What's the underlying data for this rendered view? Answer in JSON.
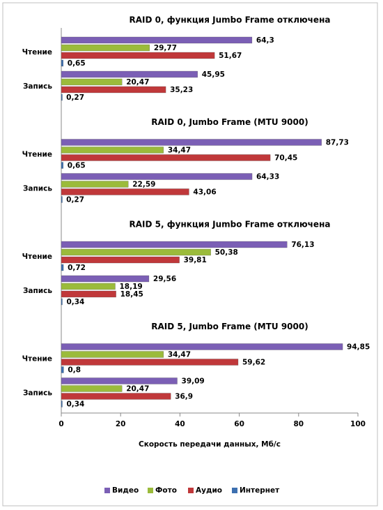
{
  "chart_data": {
    "type": "bar",
    "orientation": "horizontal",
    "group_titles": [
      "RAID 0, функция Jumbo Frame отключена",
      "RAID 0, Jumbo Frame (MTU 9000)",
      "RAID 5, функция Jumbo Frame отключена",
      "RAID 5, Jumbo Frame (MTU 9000)"
    ],
    "categories": [
      "Чтение",
      "Запись",
      "Чтение",
      "Запись",
      "Чтение",
      "Запись",
      "Чтение",
      "Запись"
    ],
    "xlabel": "Скорость передачи данных, Мб/с",
    "xlim": [
      0,
      100
    ],
    "xticks": [
      0,
      20,
      40,
      60,
      80,
      100
    ],
    "series": [
      {
        "name": "Видео",
        "color": "#7b5fb5",
        "values": [
          64.3,
          45.95,
          87.73,
          64.33,
          76.13,
          29.56,
          94.85,
          39.09
        ],
        "value_labels": [
          "64,3",
          "45,95",
          "87,73",
          "64,33",
          "76,13",
          "29,56",
          "94,85",
          "39,09"
        ]
      },
      {
        "name": "Фото",
        "color": "#9bbb3b",
        "values": [
          29.77,
          20.47,
          34.47,
          22.59,
          50.38,
          18.19,
          34.47,
          20.47
        ],
        "value_labels": [
          "29,77",
          "20,47",
          "34,47",
          "22,59",
          "50,38",
          "18,19",
          "34,47",
          "20,47"
        ]
      },
      {
        "name": "Аудио",
        "color": "#c0383a",
        "values": [
          51.67,
          35.23,
          70.45,
          43.06,
          39.81,
          18.45,
          59.62,
          36.9
        ],
        "value_labels": [
          "51,67",
          "35,23",
          "70,45",
          "43,06",
          "39,81",
          "18,45",
          "59,62",
          "36,9"
        ]
      },
      {
        "name": "Интернет",
        "color": "#3d70b0",
        "values": [
          0.65,
          0.27,
          0.65,
          0.27,
          0.72,
          0.34,
          0.8,
          0.34
        ],
        "value_labels": [
          "0,65",
          "0,27",
          "0,65",
          "0,27",
          "0,72",
          "0,34",
          "0,8",
          "0,34"
        ]
      }
    ]
  }
}
